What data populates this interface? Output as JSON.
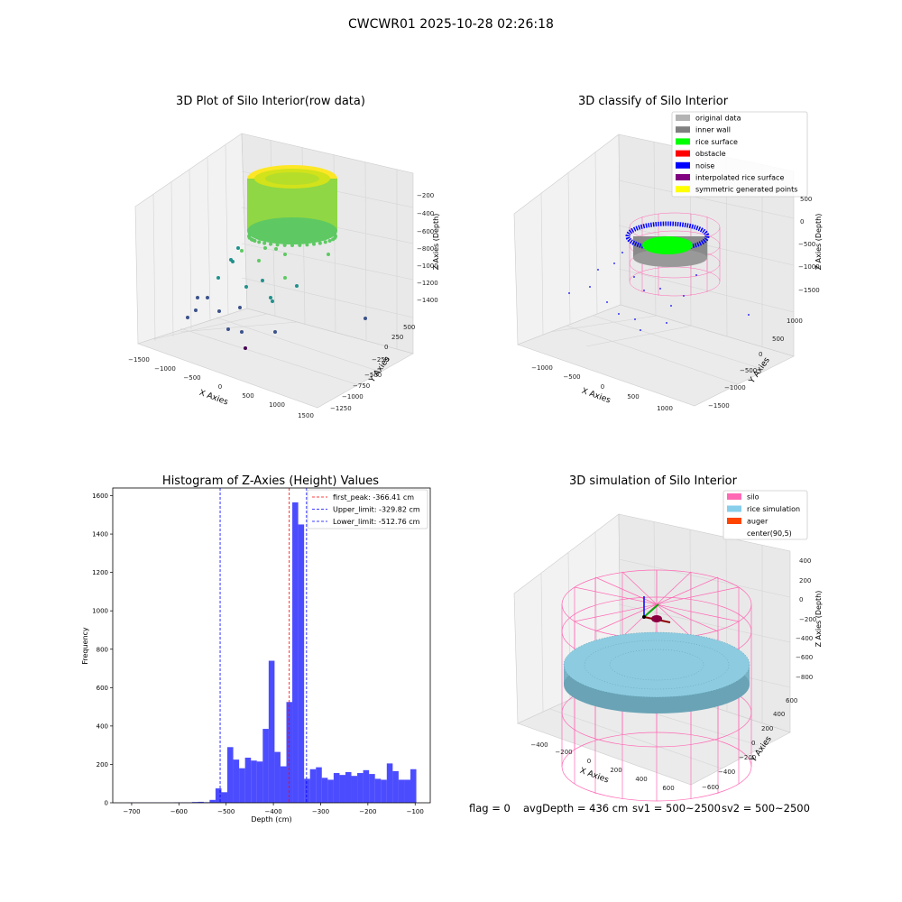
{
  "figure": {
    "suptitle": "CWCWR01 2025-10-28 02:26:18",
    "footer": {
      "flag": "flag = 0",
      "avg_depth": "avgDepth = 436 cm",
      "sv1": "sv1 = 500~2500",
      "sv2": "sv2 = 500~2500"
    }
  },
  "chart_data": [
    {
      "id": "raw",
      "type": "scatter",
      "title": "3D Plot of Silo Interior(row data)",
      "xlabel": "X Axies",
      "ylabel": "Y Axies",
      "zlabel": "Z Axies (Depth)",
      "xticks": [
        "−1500",
        "−1000",
        "−500",
        "0",
        "500",
        "1000",
        "1500"
      ],
      "yticks": [
        "−1250",
        "−1000",
        "−750",
        "−500",
        "−250",
        "0",
        "250",
        "500"
      ],
      "zticks": [
        "−1400",
        "−1200",
        "−1000",
        "−800",
        "−600",
        "−400",
        "−200"
      ],
      "colormap": [
        "#440154",
        "#3b528b",
        "#21918c",
        "#5ec962",
        "#fde725"
      ]
    },
    {
      "id": "classify",
      "type": "scatter",
      "title": "3D classify of Silo Interior",
      "xlabel": "X Axies",
      "ylabel": "Y Axies",
      "zlabel": "Z Axies (Depth)",
      "xticks": [
        "−1000",
        "−500",
        "0",
        "500",
        "1000"
      ],
      "yticks": [
        "−1500",
        "−1000",
        "−500",
        "0",
        "500",
        "1000"
      ],
      "zticks": [
        "−1500",
        "−1000",
        "−500",
        "0",
        "500"
      ],
      "legend_position": "upper right",
      "legend": [
        {
          "label": "original data",
          "color": "#b3b3b3"
        },
        {
          "label": "inner wall",
          "color": "#808080"
        },
        {
          "label": "rice surface",
          "color": "#00ff00"
        },
        {
          "label": "obstacle",
          "color": "#ff0000"
        },
        {
          "label": "noise",
          "color": "#0000ff"
        },
        {
          "label": "interpolated rice surface",
          "color": "#800080"
        },
        {
          "label": "symmetric generated points",
          "color": "#ffff00"
        }
      ]
    },
    {
      "id": "hist",
      "type": "bar",
      "title": "Histogram of Z-Axies (Height) Values",
      "xlabel": "Depth (cm)",
      "ylabel": "Frequency",
      "xlim": [
        -740,
        -68
      ],
      "ylim": [
        0,
        1640
      ],
      "xticks": [
        -700,
        -600,
        -500,
        -400,
        -300,
        -200,
        -100
      ],
      "yticks": [
        0,
        200,
        400,
        600,
        800,
        1000,
        1200,
        1400,
        1600
      ],
      "bar_color": "#0000ff",
      "bin_width": 12.5,
      "bins": [
        {
          "x0": -710,
          "v": 1
        },
        {
          "x0": -697.5,
          "v": 1
        },
        {
          "x0": -685,
          "v": 1
        },
        {
          "x0": -672.5,
          "v": 1
        },
        {
          "x0": -660,
          "v": 1
        },
        {
          "x0": -647.5,
          "v": 1
        },
        {
          "x0": -635,
          "v": 1
        },
        {
          "x0": -622.5,
          "v": 1
        },
        {
          "x0": -610,
          "v": 2
        },
        {
          "x0": -597.5,
          "v": 2
        },
        {
          "x0": -585,
          "v": 2
        },
        {
          "x0": -572.5,
          "v": 4
        },
        {
          "x0": -560,
          "v": 5
        },
        {
          "x0": -547.5,
          "v": 3
        },
        {
          "x0": -535,
          "v": 15
        },
        {
          "x0": -522.5,
          "v": 75
        },
        {
          "x0": -510,
          "v": 55
        },
        {
          "x0": -497.5,
          "v": 290
        },
        {
          "x0": -485,
          "v": 225
        },
        {
          "x0": -472.5,
          "v": 180
        },
        {
          "x0": -460,
          "v": 235
        },
        {
          "x0": -447.5,
          "v": 220
        },
        {
          "x0": -435,
          "v": 215
        },
        {
          "x0": -422.5,
          "v": 385
        },
        {
          "x0": -410,
          "v": 740
        },
        {
          "x0": -397.5,
          "v": 265
        },
        {
          "x0": -385,
          "v": 190
        },
        {
          "x0": -372.5,
          "v": 525
        },
        {
          "x0": -360,
          "v": 1565
        },
        {
          "x0": -347.5,
          "v": 1450
        },
        {
          "x0": -335,
          "v": 125
        },
        {
          "x0": -322.5,
          "v": 175
        },
        {
          "x0": -310,
          "v": 185
        },
        {
          "x0": -297.5,
          "v": 130
        },
        {
          "x0": -285,
          "v": 120
        },
        {
          "x0": -272.5,
          "v": 155
        },
        {
          "x0": -260,
          "v": 145
        },
        {
          "x0": -247.5,
          "v": 160
        },
        {
          "x0": -235,
          "v": 140
        },
        {
          "x0": -222.5,
          "v": 155
        },
        {
          "x0": -210,
          "v": 170
        },
        {
          "x0": -197.5,
          "v": 150
        },
        {
          "x0": -185,
          "v": 125
        },
        {
          "x0": -172.5,
          "v": 120
        },
        {
          "x0": -160,
          "v": 205
        },
        {
          "x0": -147.5,
          "v": 165
        },
        {
          "x0": -135,
          "v": 120
        },
        {
          "x0": -122.5,
          "v": 120
        },
        {
          "x0": -110,
          "v": 175
        }
      ],
      "vlines": [
        {
          "label": "first_peak: -366.41 cm",
          "value": -366.41,
          "color": "#ff0000"
        },
        {
          "label": "Upper_limit: -329.82 cm",
          "value": -329.82,
          "color": "#0000ff"
        },
        {
          "label": "Lower_limit: -512.76 cm",
          "value": -512.76,
          "color": "#0000ff"
        }
      ],
      "legend_position": "upper right"
    },
    {
      "id": "sim",
      "type": "scatter",
      "title": "3D simulation of Silo Interior",
      "xlabel": "X Axies",
      "ylabel": "Y Axies",
      "zlabel": "Z Axies (Depth)",
      "xticks": [
        "−400",
        "−200",
        "0",
        "200",
        "400",
        "600"
      ],
      "yticks": [
        "−600",
        "−400",
        "−200",
        "0",
        "200",
        "400",
        "600"
      ],
      "zticks": [
        "−800",
        "−600",
        "−400",
        "−200",
        "0",
        "200",
        "400"
      ],
      "legend_position": "upper right",
      "legend": [
        {
          "label": "silo",
          "color": "#ff69b4"
        },
        {
          "label": "rice simulation",
          "color": "#87ceeb"
        },
        {
          "label": "auger",
          "color": "#ff4500"
        },
        {
          "label": "center(90,5)",
          "color": "#ffffff"
        }
      ]
    }
  ]
}
